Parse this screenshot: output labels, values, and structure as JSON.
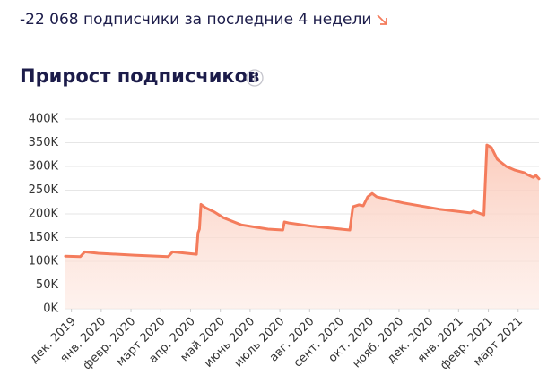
{
  "header": {
    "summary": "-22 068 подписчики за последние 4 недели"
  },
  "chart_data": {
    "type": "line",
    "title": "Прирост подписчиков",
    "color": "#f47c5c",
    "fill": "#fbd3c6",
    "grid": true,
    "x": [
      -0.2,
      0.3,
      0.45,
      0.9,
      2.1,
      3.25,
      3.4,
      3.55,
      4.2,
      4.25,
      4.3,
      4.35,
      4.5,
      4.8,
      5.1,
      5.7,
      6.6,
      7.1,
      7.15,
      7.3,
      8.1,
      9.35,
      9.45,
      9.65,
      9.8,
      9.95,
      10.1,
      10.25,
      11.15,
      12.35,
      13.4,
      13.5,
      13.85,
      13.95,
      14.1,
      14.3,
      14.6,
      14.9,
      15.2,
      15.3,
      15.5,
      15.6,
      15.7
    ],
    "values": [
      111000,
      110000,
      120000,
      117000,
      113000,
      110000,
      120000,
      119000,
      115000,
      160000,
      168000,
      220000,
      213000,
      204000,
      192000,
      177000,
      168000,
      166000,
      183000,
      181000,
      174000,
      166000,
      215000,
      219000,
      217000,
      236000,
      243000,
      236000,
      223000,
      210000,
      202000,
      206000,
      198000,
      345000,
      340000,
      315000,
      300000,
      292000,
      287000,
      283000,
      277000,
      281000,
      274000
    ],
    "xlim": [
      -0.2,
      15.7
    ],
    "xticks": [
      {
        "value": 0,
        "label": "дек. 2019"
      },
      {
        "value": 1,
        "label": "янв. 2020"
      },
      {
        "value": 2,
        "label": "февр. 2020"
      },
      {
        "value": 3,
        "label": "март 2020"
      },
      {
        "value": 4,
        "label": "апр. 2020"
      },
      {
        "value": 5,
        "label": "май 2020"
      },
      {
        "value": 6,
        "label": "июнь 2020"
      },
      {
        "value": 7,
        "label": "июль 2020"
      },
      {
        "value": 8,
        "label": "авг. 2020"
      },
      {
        "value": 9,
        "label": "сент. 2020"
      },
      {
        "value": 10,
        "label": "окт. 2020"
      },
      {
        "value": 11,
        "label": "нояб. 2020"
      },
      {
        "value": 12,
        "label": "дек. 2020"
      },
      {
        "value": 13,
        "label": "янв. 2021"
      },
      {
        "value": 14,
        "label": "февр. 2021"
      },
      {
        "value": 15,
        "label": "март 2021"
      }
    ],
    "ylim": [
      0,
      400000
    ],
    "yticks": [
      {
        "value": 0,
        "label": "0K"
      },
      {
        "value": 50000,
        "label": "50K"
      },
      {
        "value": 100000,
        "label": "100K"
      },
      {
        "value": 150000,
        "label": "150K"
      },
      {
        "value": 200000,
        "label": "200K"
      },
      {
        "value": 250000,
        "label": "250K"
      },
      {
        "value": 300000,
        "label": "300K"
      },
      {
        "value": 350000,
        "label": "350K"
      },
      {
        "value": 400000,
        "label": "400K"
      }
    ]
  }
}
